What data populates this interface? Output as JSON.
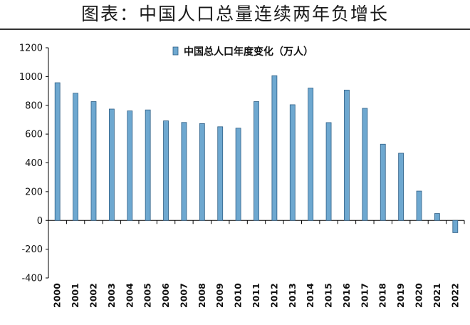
{
  "page": {
    "title": "图表：中国人口总量连续两年负增长"
  },
  "colors": {
    "bar_fill": "#6ea8d0",
    "bar_stroke": "#2f5f86",
    "axis": "#000000"
  },
  "chart_data": {
    "type": "bar",
    "title": "",
    "xlabel": "",
    "ylabel": "",
    "legend": {
      "position": "top-center",
      "label": "中国总人口年度变化（万人）"
    },
    "categories": [
      "2000",
      "2001",
      "2002",
      "2003",
      "2004",
      "2005",
      "2006",
      "2007",
      "2008",
      "2009",
      "2010",
      "2011",
      "2012",
      "2013",
      "2014",
      "2015",
      "2016",
      "2017",
      "2018",
      "2019",
      "2020",
      "2021",
      "2022"
    ],
    "series": [
      {
        "name": "中国总人口年度变化（万人）",
        "values": [
          957,
          884,
          826,
          774,
          761,
          768,
          692,
          681,
          673,
          651,
          641,
          826,
          1006,
          804,
          920,
          680,
          906,
          779,
          530,
          467,
          204,
          48,
          -85
        ]
      }
    ],
    "ylim": [
      -400,
      1200
    ],
    "yticks": [
      -400,
      -200,
      0,
      200,
      400,
      600,
      800,
      1000,
      1200
    ],
    "grid": false
  }
}
